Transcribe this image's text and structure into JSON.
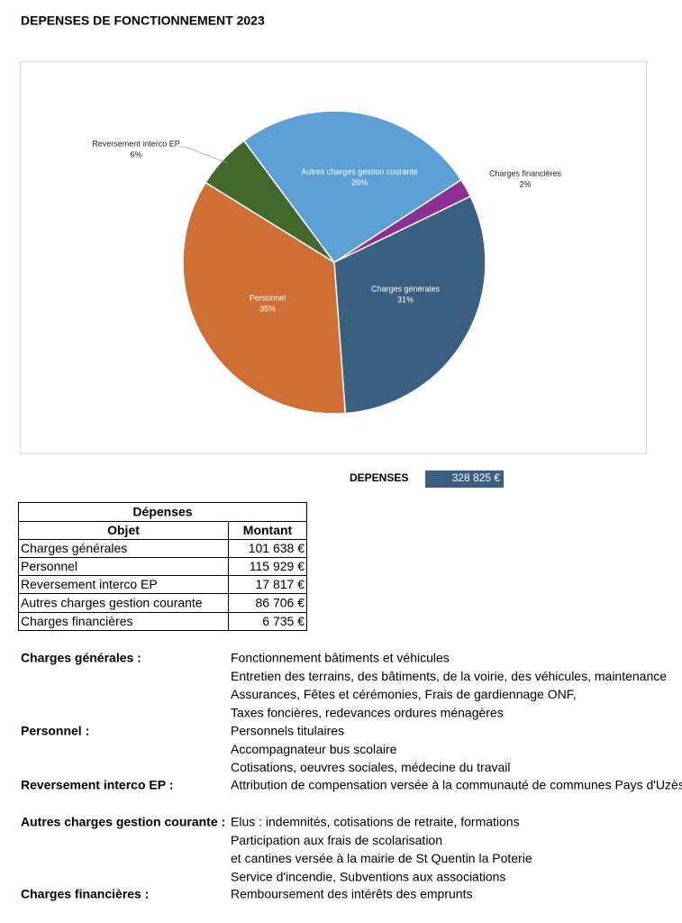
{
  "title": "DEPENSES DE FONCTIONNEMENT 2023",
  "chart_data": {
    "type": "pie",
    "categories": [
      "Charges financières",
      "Charges générales",
      "Personnel",
      "Reversement interco EP",
      "Autres charges gestion courante"
    ],
    "values": [
      2,
      31,
      35,
      6,
      26
    ],
    "value_labels": [
      "2%",
      "31%",
      "35%",
      "6%",
      "26%"
    ],
    "colors": [
      "#8b2f96",
      "#3a5f80",
      "#cf6f36",
      "#43682e",
      "#5b9fd4"
    ]
  },
  "total": {
    "label": "DEPENSES",
    "value": "328 825 €"
  },
  "table": {
    "title": "Dépenses",
    "headers": [
      "Objet",
      "Montant"
    ],
    "rows": [
      [
        "Charges générales",
        "101 638 €"
      ],
      [
        "Personnel",
        "115 929 €"
      ],
      [
        "Reversement interco EP",
        "17 817 €"
      ],
      [
        "Autres charges gestion courante",
        "86 706 €"
      ],
      [
        "Charges financières",
        "6 735 €"
      ]
    ]
  },
  "descriptions": [
    {
      "label": "Charges générales :",
      "lines": [
        "Fonctionnement bâtiments et véhicules",
        "Entretien des terrains, des bâtiments, de la voirie, des véhicules, maintenance",
        "Assurances, Fêtes et cérémonies, Frais de gardiennage ONF,",
        "Taxes foncières, redevances ordures ménagères"
      ]
    },
    {
      "label": "Personnel :",
      "lines": [
        "Personnels titulaires",
        "Accompagnateur bus scolaire",
        "Cotisations, oeuvres sociales, médecine du travail"
      ]
    },
    {
      "label": "Reversement interco EP :",
      "lines": [
        "Attribution de compensation versée à la communauté de communes Pays d'Uzès"
      ]
    },
    {
      "label": "Autres charges gestion courante :",
      "lines": [
        "Elus : indemnités, cotisations de retraite, formations",
        "Participation aux frais de scolarisation",
        "et cantines versée à la mairie de St Quentin la Poterie",
        "Service d'incendie, Subventions aux associations"
      ]
    },
    {
      "label": "Charges financières :",
      "lines": [
        "Remboursement des intérêts des emprunts"
      ]
    }
  ]
}
